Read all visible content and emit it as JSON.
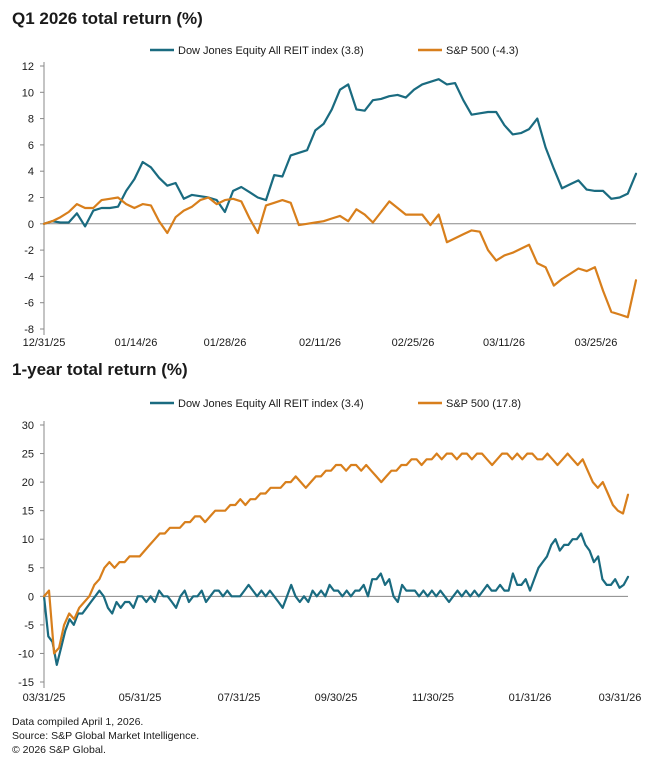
{
  "colors": {
    "reit": "#1a6b80",
    "sp": "#d87f1c",
    "axis": "#888888"
  },
  "chart_data": [
    {
      "type": "line",
      "title": "Q1 2026 total return (%)",
      "x_labels": [
        "12/31/25",
        "01/14/26",
        "01/28/26",
        "02/11/26",
        "02/25/26",
        "03/11/26",
        "03/25/26"
      ],
      "ylim": [
        -8,
        12
      ],
      "yticks": [
        12,
        10,
        8,
        6,
        4,
        2,
        0,
        -2,
        -4,
        -6,
        -8
      ],
      "series": [
        {
          "name": "Dow Jones Equity All REIT index (3.8)",
          "color": "#1a6b80",
          "values": [
            0,
            0.2,
            0.1,
            0.1,
            0.8,
            -0.2,
            1.0,
            1.2,
            1.2,
            1.3,
            2.5,
            3.4,
            4.7,
            4.3,
            3.5,
            2.9,
            3.1,
            1.9,
            2.2,
            2.1,
            2.0,
            1.8,
            0.9,
            2.5,
            2.8,
            2.4,
            2.0,
            1.8,
            3.7,
            3.6,
            5.2,
            5.4,
            5.6,
            7.1,
            7.6,
            8.7,
            10.2,
            10.6,
            8.7,
            8.6,
            9.4,
            9.5,
            9.7,
            9.8,
            9.6,
            10.2,
            10.6,
            10.8,
            11.0,
            10.6,
            10.7,
            9.4,
            8.3,
            8.4,
            8.5,
            8.5,
            7.5,
            6.8,
            6.9,
            7.2,
            8.0,
            5.8,
            4.2,
            2.7,
            3.0,
            3.3,
            2.6,
            2.5,
            2.5,
            1.9,
            2.0,
            2.3,
            3.8
          ]
        },
        {
          "name": "S&P 500 (-4.3)",
          "color": "#d87f1c",
          "values": [
            0,
            0.2,
            0.5,
            0.9,
            1.5,
            1.2,
            1.2,
            1.8,
            1.9,
            2.0,
            1.5,
            1.2,
            1.5,
            1.4,
            0.2,
            -0.7,
            0.5,
            1.0,
            1.3,
            1.8,
            2.0,
            1.5,
            1.8,
            1.9,
            1.7,
            0.4,
            -0.7,
            1.4,
            1.6,
            1.8,
            1.6,
            -0.1,
            0,
            0.1,
            0.2,
            0.4,
            0.6,
            0.2,
            1.1,
            0.7,
            0.1,
            0.9,
            1.7,
            1.2,
            0.7,
            0.7,
            0.7,
            -0.1,
            0.7,
            -1.4,
            -1.1,
            -0.8,
            -0.5,
            -0.6,
            -2.0,
            -2.8,
            -2.4,
            -2.2,
            -1.9,
            -1.6,
            -3.0,
            -3.3,
            -4.7,
            -4.2,
            -3.8,
            -3.4,
            -3.6,
            -3.3,
            -5.1,
            -6.7,
            -6.9,
            -7.1,
            -4.3
          ]
        }
      ]
    },
    {
      "type": "line",
      "title": "1-year total return (%)",
      "x_labels": [
        "03/31/25",
        "05/31/25",
        "07/31/25",
        "09/30/25",
        "11/30/25",
        "01/31/26",
        "03/31/26"
      ],
      "ylim": [
        -15,
        30
      ],
      "yticks": [
        30,
        25,
        20,
        15,
        10,
        5,
        0,
        -5,
        -10,
        -15
      ],
      "series": [
        {
          "name": "Dow Jones Equity All REIT index (3.4)",
          "color": "#1a6b80",
          "values": [
            0,
            -7,
            -8,
            -12,
            -9,
            -6,
            -4,
            -5,
            -3,
            -3,
            -2,
            -1,
            0,
            1,
            0,
            -2,
            -3,
            -1,
            -2,
            -1,
            -1,
            -2,
            0,
            0,
            -1,
            0,
            -1,
            1,
            0,
            0,
            -1,
            -2,
            0,
            1,
            -1,
            0,
            0,
            1,
            -1,
            0,
            1,
            1,
            0,
            1,
            0,
            0,
            0,
            1,
            2,
            1,
            0,
            1,
            0,
            1,
            0,
            -1,
            -2,
            0,
            2,
            0,
            -1,
            0,
            -1,
            1,
            0,
            1,
            0,
            2,
            1,
            1,
            0,
            1,
            0,
            1,
            1,
            2,
            0,
            3,
            3,
            4,
            2,
            3,
            0,
            -1,
            2,
            1,
            1,
            1,
            0,
            1,
            0,
            1,
            0,
            1,
            0,
            -1,
            0,
            1,
            0,
            1,
            0,
            1,
            0,
            1,
            2,
            1,
            1,
            2,
            1,
            1,
            4,
            2,
            2,
            3,
            1,
            3,
            5,
            6,
            7,
            9,
            10,
            8,
            9,
            9,
            10,
            10,
            11,
            9,
            8,
            6,
            7,
            3,
            2,
            2,
            3,
            1.5,
            2,
            3.4
          ]
        },
        {
          "name": "S&P 500 (17.8)",
          "color": "#d87f1c",
          "values": [
            0,
            1,
            -10,
            -9,
            -5,
            -3,
            -4,
            -2,
            -1,
            0,
            2,
            3,
            5,
            6,
            5,
            6,
            6,
            7,
            7,
            7,
            8,
            9,
            10,
            11,
            11,
            12,
            12,
            12,
            13,
            13,
            14,
            14,
            13,
            14,
            15,
            15,
            15,
            16,
            16,
            17,
            16,
            17,
            17,
            18,
            18,
            19,
            19,
            19,
            20,
            20,
            21,
            20,
            19,
            20,
            21,
            21,
            22,
            22,
            23,
            23,
            22,
            23,
            23,
            22,
            23,
            22,
            21,
            20,
            21,
            22,
            22,
            23,
            23,
            24,
            24,
            23,
            24,
            24,
            25,
            24,
            25,
            25,
            24,
            25,
            25,
            24,
            25,
            25,
            24,
            23,
            24,
            25,
            25,
            24,
            25,
            24,
            25,
            25,
            24,
            24,
            25,
            24,
            23,
            24,
            25,
            24,
            23,
            24,
            22,
            20,
            19,
            20,
            18,
            16,
            15,
            14.5,
            17.8
          ]
        }
      ]
    }
  ],
  "footer": {
    "line1": "Data compiled April 1, 2026.",
    "line2": "Source: S&P Global Market Intelligence.",
    "line3": "© 2026 S&P Global."
  }
}
